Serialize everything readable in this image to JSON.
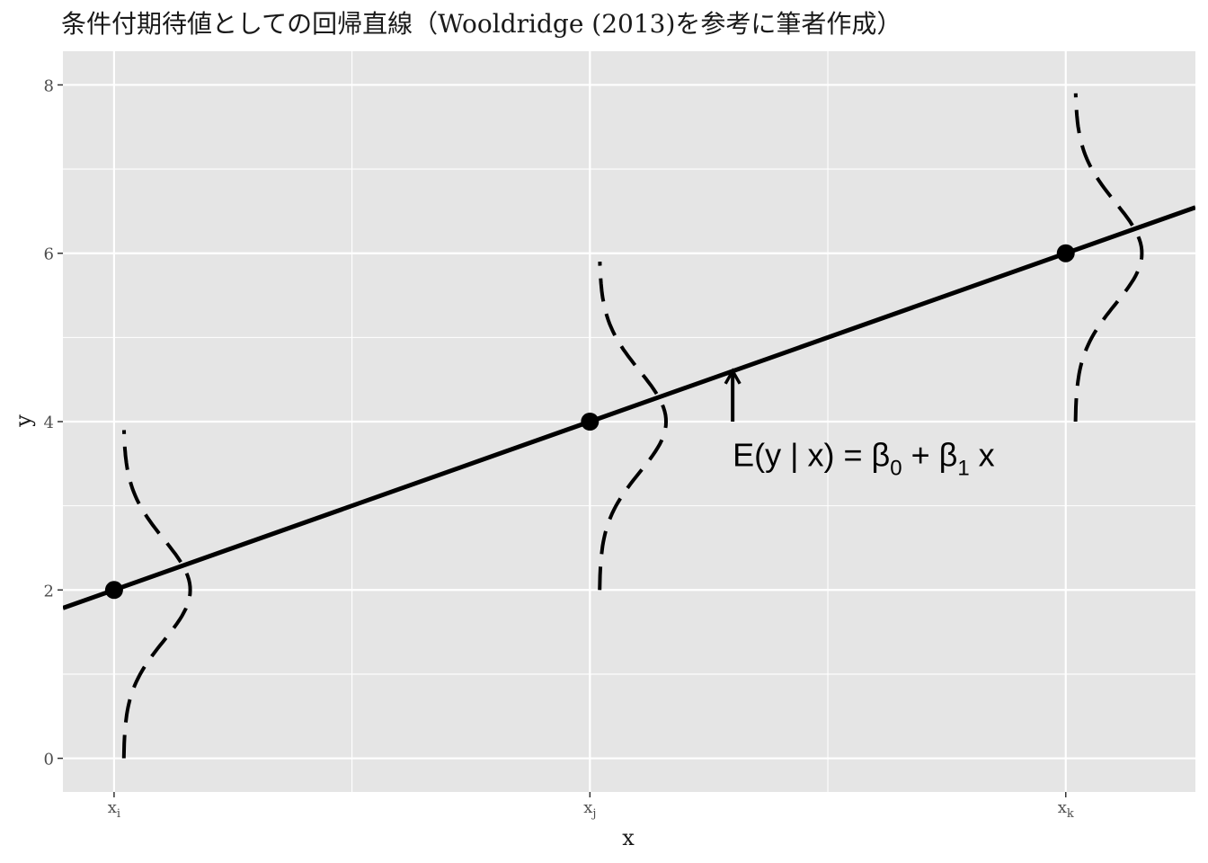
{
  "chart_data": {
    "type": "line",
    "title": "条件付期待値としての回帰直線（Wooldridge (2013)を参考に筆者作成）",
    "xlabel": "x",
    "ylabel": "y",
    "xlim": [
      -0.215,
      4.545
    ],
    "ylim": [
      -0.4,
      8.4
    ],
    "x_ticks": [
      {
        "value": 0,
        "base": "x",
        "sub": "i"
      },
      {
        "value": 2,
        "base": "x",
        "sub": "j"
      },
      {
        "value": 4,
        "base": "x",
        "sub": "k"
      }
    ],
    "x_minor_gridlines": [
      1,
      3
    ],
    "y_ticks": [
      0,
      2,
      4,
      6,
      8
    ],
    "y_minor_gridlines": [
      1,
      3,
      5,
      7
    ],
    "regression_line": {
      "intercept": 2,
      "slope": 1
    },
    "points": [
      {
        "x": 0,
        "y": 2
      },
      {
        "x": 2,
        "y": 4
      },
      {
        "x": 4,
        "y": 6
      }
    ],
    "densities": [
      {
        "x": 0,
        "mean": 2,
        "y_from": 0,
        "y_to": 3.9
      },
      {
        "x": 2,
        "mean": 4,
        "y_from": 2,
        "y_to": 5.9
      },
      {
        "x": 4,
        "mean": 6,
        "y_from": 4,
        "y_to": 7.9
      }
    ],
    "arrow": {
      "x": 2.6,
      "y_from": 4,
      "y_to": 4.6
    },
    "annotation": {
      "x": 2.6,
      "y": 3.6,
      "parts": [
        {
          "t": "E(y | x) = β"
        },
        {
          "t": "0",
          "sub": true
        },
        {
          "t": " + β"
        },
        {
          "t": "1",
          "sub": true
        },
        {
          "t": " x"
        }
      ]
    },
    "grid": true,
    "legend": "none",
    "colors": {
      "panel": "#e5e5e5",
      "grid": "#ffffff",
      "ink": "#000000",
      "tick": "#4d4d4d"
    }
  }
}
